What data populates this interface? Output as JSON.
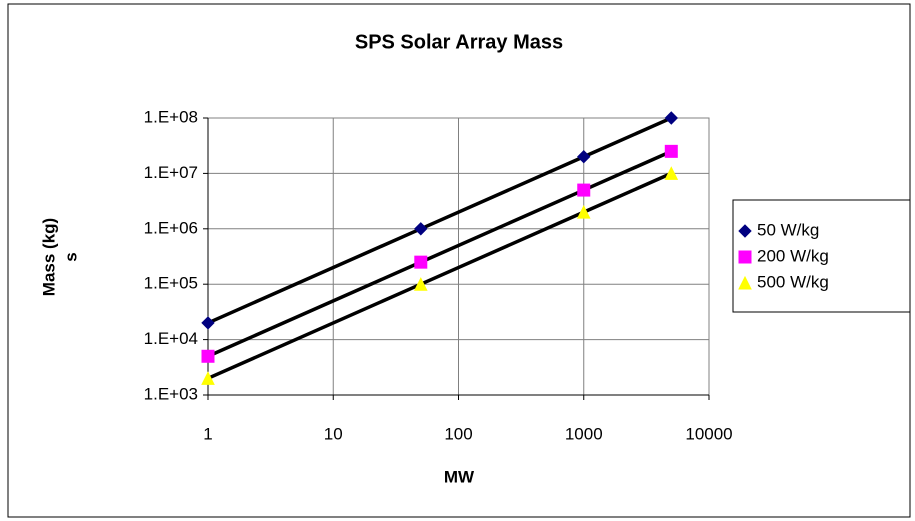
{
  "chart_data": {
    "type": "scatter-line",
    "title": "SPS Solar Array Mass",
    "xlabel": "MW",
    "ylabel": [
      "Mass (kg)",
      "s"
    ],
    "x": [
      1,
      50,
      1000,
      5000
    ],
    "series": [
      {
        "name": "50 W/kg",
        "color": "#000080",
        "marker": "diamond",
        "values": [
          20000,
          1000000,
          20000000,
          100000000
        ]
      },
      {
        "name": "200 W/kg",
        "color": "#ff00ff",
        "marker": "square",
        "values": [
          5000,
          250000,
          5000000,
          25000000
        ]
      },
      {
        "name": "500 W/kg",
        "color": "#ffff00",
        "marker": "triangle",
        "values": [
          2000,
          100000,
          2000000,
          10000000
        ]
      }
    ],
    "line_color": "#000000",
    "xlog": true,
    "ylog": true,
    "xlim": [
      1,
      10000
    ],
    "xticks": [
      1,
      10,
      100,
      1000,
      10000
    ],
    "ylim": [
      1000,
      100000000
    ],
    "yticks": [
      {
        "value": 1000,
        "label": "1.E+03"
      },
      {
        "value": 10000,
        "label": "1.E+04"
      },
      {
        "value": 100000,
        "label": "1.E+05"
      },
      {
        "value": 1000000,
        "label": "1.E+06"
      },
      {
        "value": 10000000,
        "label": "1.E+07"
      },
      {
        "value": 100000000,
        "label": "1.E+08"
      }
    ],
    "grid": true,
    "legend": "right"
  }
}
